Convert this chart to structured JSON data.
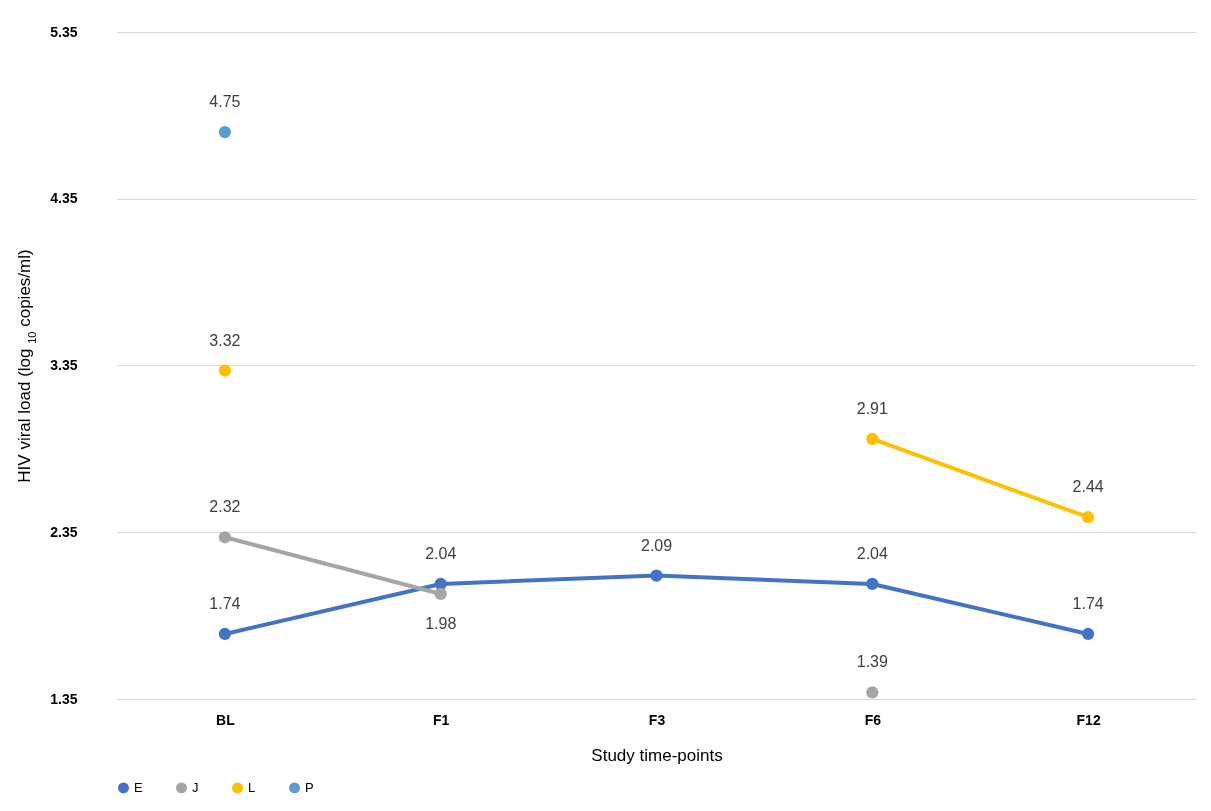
{
  "chart_data": {
    "type": "line",
    "xlabel": "Study time-points",
    "ylabel": "HIV viral load (log $_{10}$ copies/ml)",
    "categories": [
      "BL",
      "F1",
      "F3",
      "F6",
      "F12"
    ],
    "series": [
      {
        "name": "E",
        "color": "#4472c4",
        "values": [
          1.74,
          2.04,
          2.09,
          2.04,
          1.74
        ]
      },
      {
        "name": "J",
        "color": "#a5a5a5",
        "values": [
          2.32,
          1.98,
          null,
          1.39,
          null
        ]
      },
      {
        "name": "L",
        "color": "#ffc000",
        "values": [
          3.32,
          null,
          null,
          2.91,
          2.44
        ]
      },
      {
        "name": "P",
        "color": "#5b9bd5",
        "values": [
          4.75,
          null,
          null,
          null,
          null
        ]
      }
    ],
    "ylim": [
      1.35,
      5.35
    ],
    "yticks": [
      1.35,
      2.35,
      3.35,
      4.35,
      5.35
    ],
    "grid": "y",
    "legend": "bottom",
    "marker": "circle",
    "line_style": "solid",
    "data_labels": true
  }
}
